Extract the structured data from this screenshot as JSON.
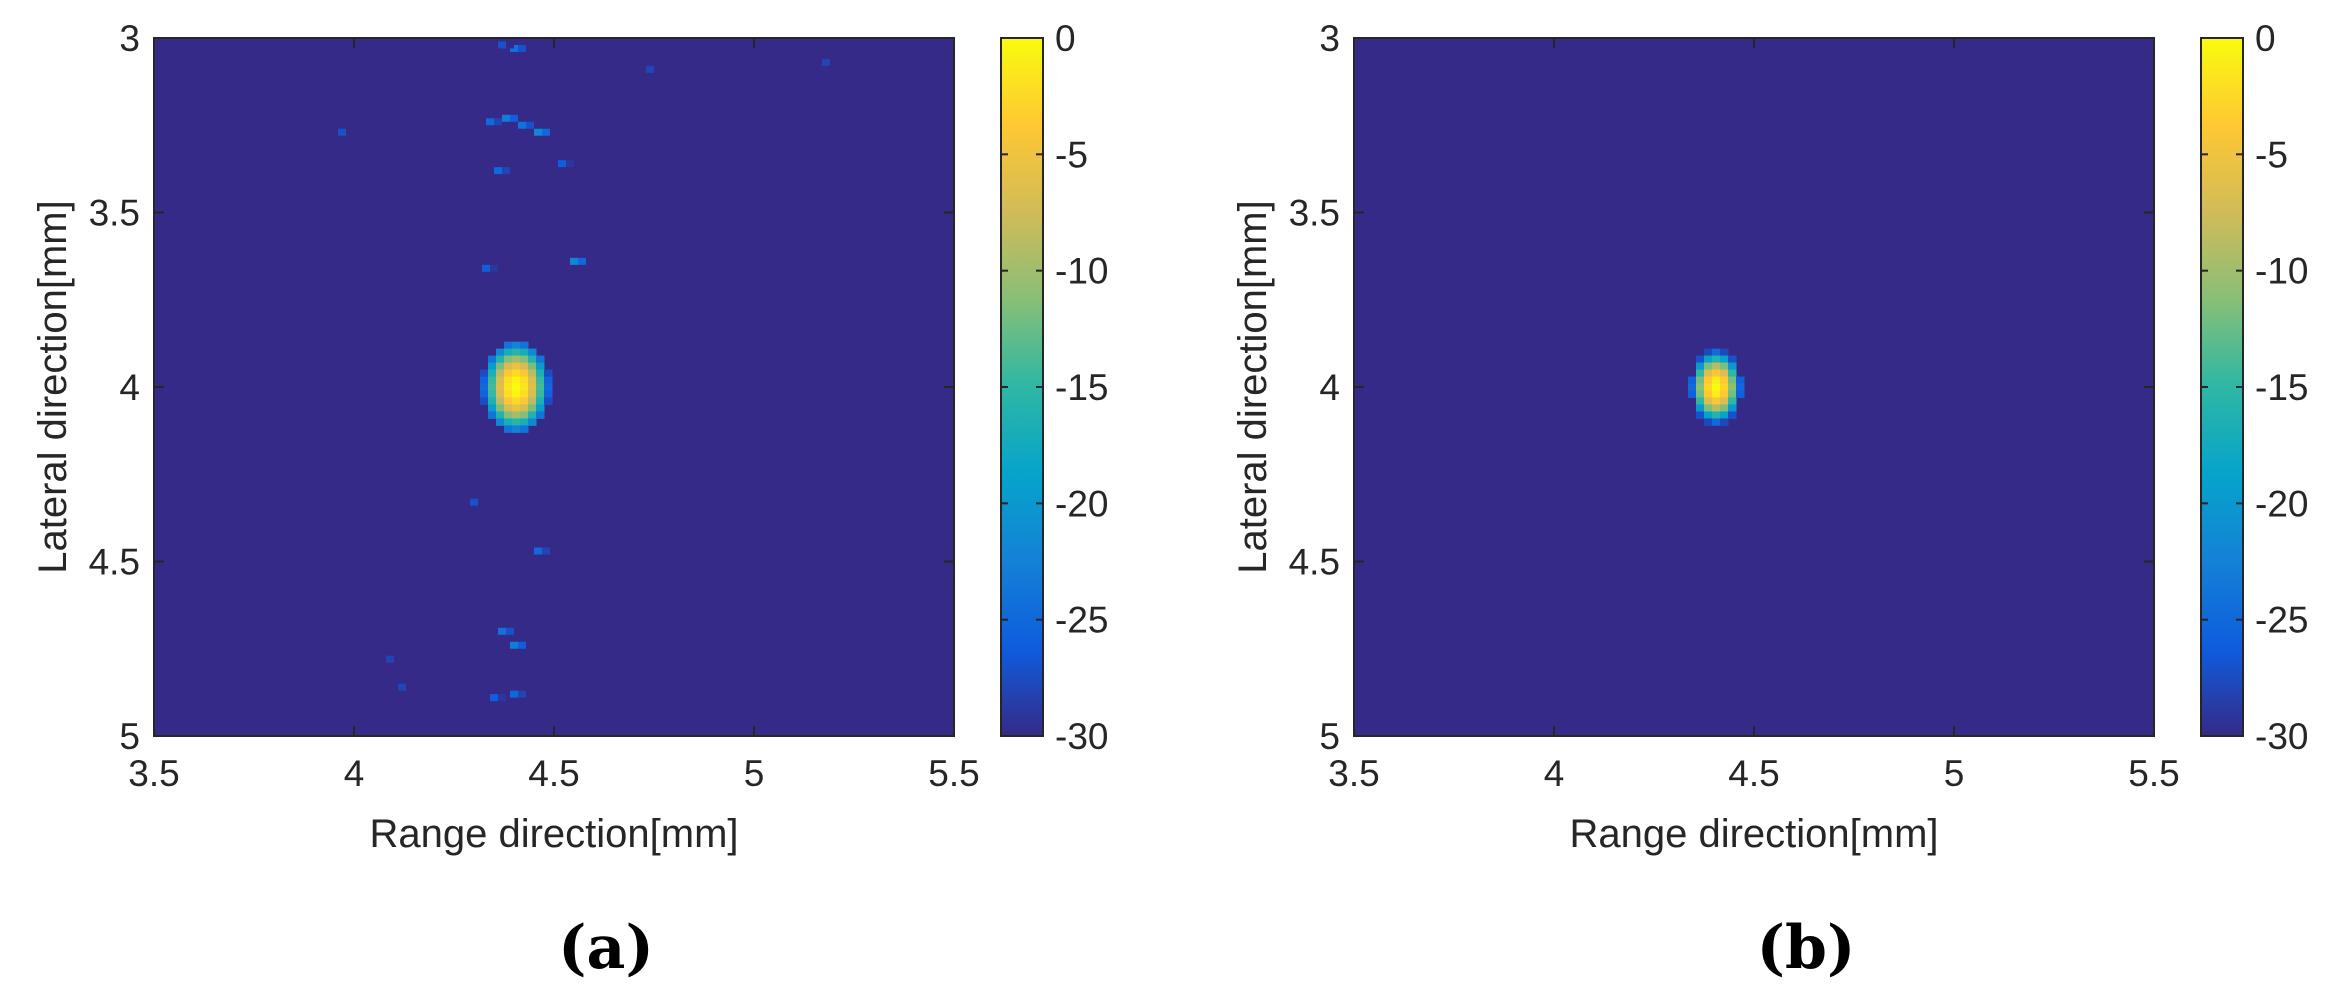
{
  "chart_data": [
    {
      "type": "heatmap",
      "panel_label": "(a)",
      "xlabel": "Range direction[mm]",
      "ylabel": "Lateral direction[mm]",
      "xlim": [
        3.5,
        5.5
      ],
      "ylim": [
        3,
        5
      ],
      "y_reversed": true,
      "xticks": [
        3.5,
        4,
        4.5,
        5,
        5.5
      ],
      "xtick_labels": [
        "3.5",
        "4",
        "4.5",
        "5",
        "5.5"
      ],
      "yticks": [
        3,
        3.5,
        4,
        4.5,
        5
      ],
      "ytick_labels": [
        "3",
        "3.5",
        "4",
        "4.5",
        "5"
      ],
      "colorbar": {
        "min": -30,
        "max": 0,
        "unit_hint": "dB",
        "ticks": [
          0,
          -5,
          -10,
          -15,
          -20,
          -25,
          -30
        ],
        "tick_labels": [
          "0",
          "-5",
          "-10",
          "-15",
          "-20",
          "-25",
          "-30"
        ]
      },
      "colormap": "parula",
      "background_value": -30,
      "targets": [
        {
          "x": 4.405,
          "y": 4.0,
          "peak": 0,
          "x_halfwidth": 0.06,
          "y_halfwidth": 0.095
        }
      ],
      "clutter": [
        {
          "x": 4.4,
          "y": 3.03,
          "value": -24
        },
        {
          "x": 4.37,
          "y": 3.02,
          "value": -27
        },
        {
          "x": 4.34,
          "y": 3.24,
          "value": -25
        },
        {
          "x": 4.38,
          "y": 3.23,
          "value": -23
        },
        {
          "x": 4.42,
          "y": 3.25,
          "value": -24
        },
        {
          "x": 4.46,
          "y": 3.27,
          "value": -22
        },
        {
          "x": 3.97,
          "y": 3.27,
          "value": -27
        },
        {
          "x": 4.36,
          "y": 3.38,
          "value": -25
        },
        {
          "x": 4.52,
          "y": 3.36,
          "value": -26
        },
        {
          "x": 4.33,
          "y": 3.66,
          "value": -26
        },
        {
          "x": 4.55,
          "y": 3.64,
          "value": -22
        },
        {
          "x": 4.3,
          "y": 4.33,
          "value": -27
        },
        {
          "x": 4.46,
          "y": 4.47,
          "value": -25
        },
        {
          "x": 4.37,
          "y": 4.7,
          "value": -24
        },
        {
          "x": 4.4,
          "y": 4.74,
          "value": -23
        },
        {
          "x": 4.35,
          "y": 4.89,
          "value": -26
        },
        {
          "x": 4.4,
          "y": 4.88,
          "value": -25
        },
        {
          "x": 4.09,
          "y": 4.78,
          "value": -28
        },
        {
          "x": 4.12,
          "y": 4.86,
          "value": -28
        },
        {
          "x": 4.74,
          "y": 3.09,
          "value": -28
        },
        {
          "x": 5.18,
          "y": 3.07,
          "value": -28
        }
      ]
    },
    {
      "type": "heatmap",
      "panel_label": "(b)",
      "xlabel": "Range direction[mm]",
      "ylabel": "Lateral direction[mm]",
      "xlim": [
        3.5,
        5.5
      ],
      "ylim": [
        3,
        5
      ],
      "y_reversed": true,
      "xticks": [
        3.5,
        4,
        4.5,
        5,
        5.5
      ],
      "xtick_labels": [
        "3.5",
        "4",
        "4.5",
        "5",
        "5.5"
      ],
      "yticks": [
        3,
        3.5,
        4,
        4.5,
        5
      ],
      "ytick_labels": [
        "3",
        "3.5",
        "4",
        "4.5",
        "5"
      ],
      "colorbar": {
        "min": -30,
        "max": 0,
        "unit_hint": "dB",
        "ticks": [
          0,
          -5,
          -10,
          -15,
          -20,
          -25,
          -30
        ],
        "tick_labels": [
          "0",
          "-5",
          "-10",
          "-15",
          "-20",
          "-25",
          "-30"
        ]
      },
      "colormap": "parula",
      "background_value": -30,
      "targets": [
        {
          "x": 4.405,
          "y": 4.0,
          "peak": 0,
          "x_halfwidth": 0.045,
          "y_halfwidth": 0.075
        }
      ],
      "clutter": []
    }
  ]
}
